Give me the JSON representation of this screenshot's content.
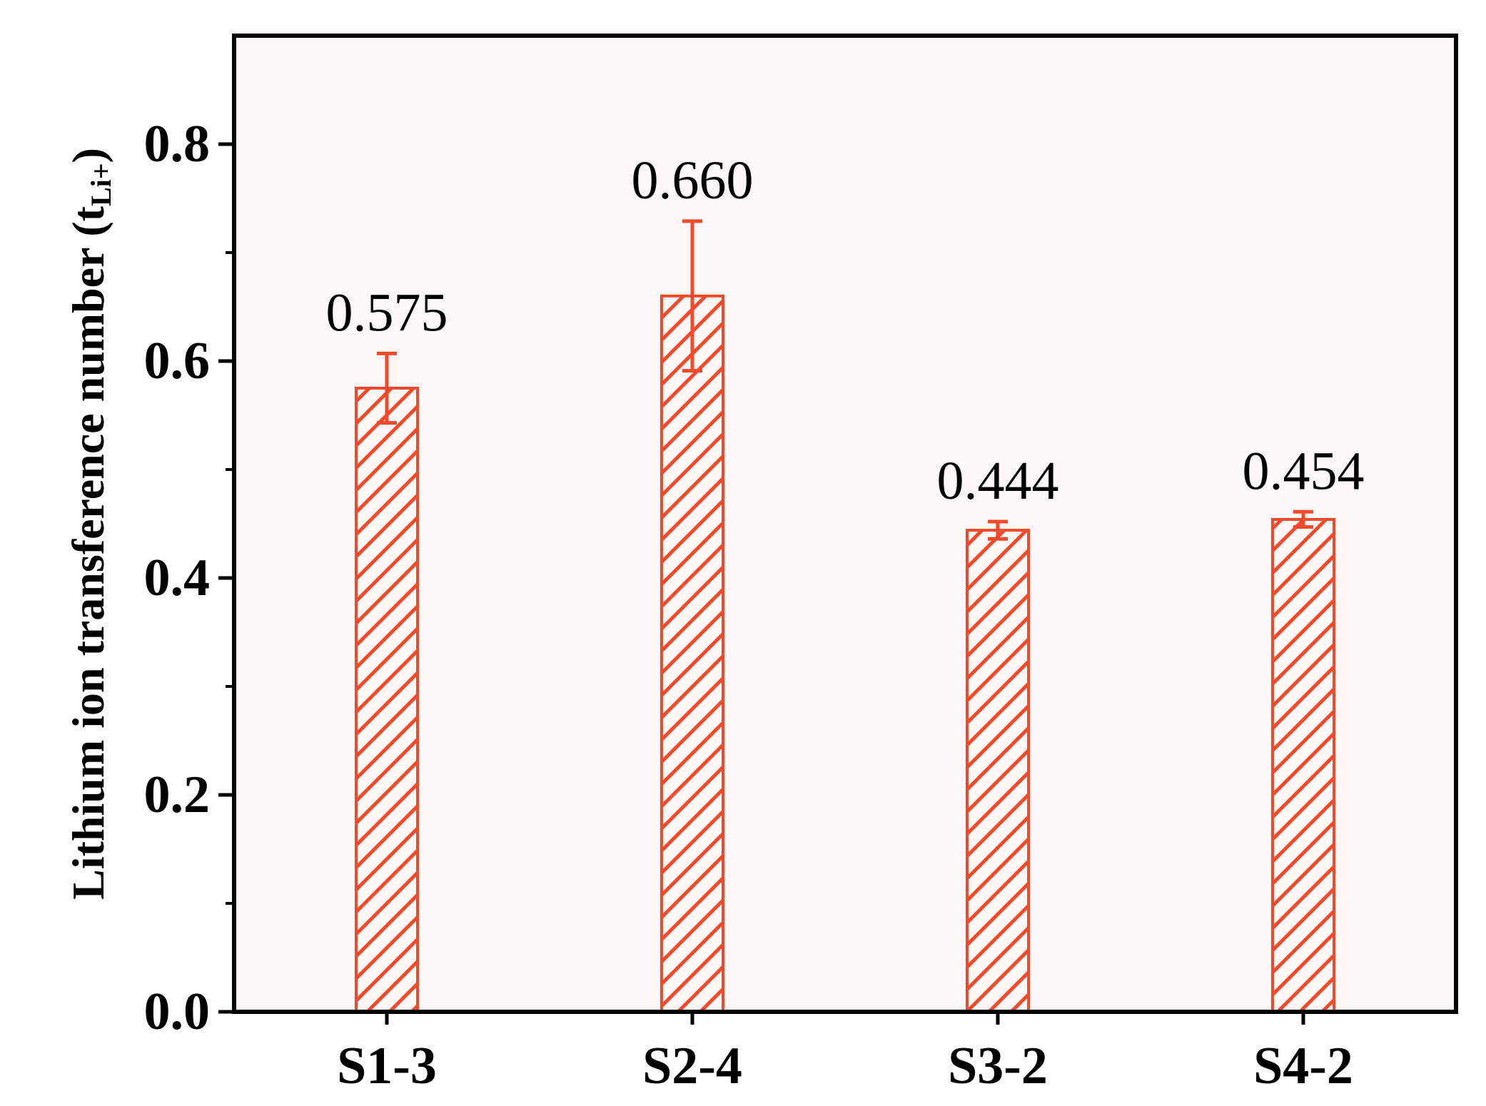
{
  "chart_data": {
    "type": "bar",
    "categories": [
      "S1-3",
      "S2-4",
      "S3-2",
      "S4-2"
    ],
    "values": [
      0.575,
      0.66,
      0.444,
      0.454
    ],
    "errors": [
      0.032,
      0.069,
      0.008,
      0.007
    ],
    "value_labels": [
      "0.575",
      "0.660",
      "0.444",
      "0.454"
    ],
    "title": "",
    "xlabel": "",
    "ylabel": "Lithium ion transference number (t",
    "ylabel_subscript": "Li+",
    "ylabel_close": ")",
    "ylim": [
      0,
      0.9
    ],
    "yticks": [
      0.0,
      0.2,
      0.4,
      0.6,
      0.8
    ],
    "ytick_labels": [
      "0.0",
      "0.2",
      "0.4",
      "0.6",
      "0.8"
    ],
    "minor_yticks": [
      0.1,
      0.3,
      0.5,
      0.7
    ],
    "grid": false,
    "legend": "none",
    "colors": {
      "bar": "#f04a2c",
      "bar_fill": "#fff8f6",
      "error_bar": "#f04a2c",
      "plot_background": "#fdf8f7",
      "axis": "#000000"
    },
    "bar_pattern": "diagonal-hatch"
  }
}
